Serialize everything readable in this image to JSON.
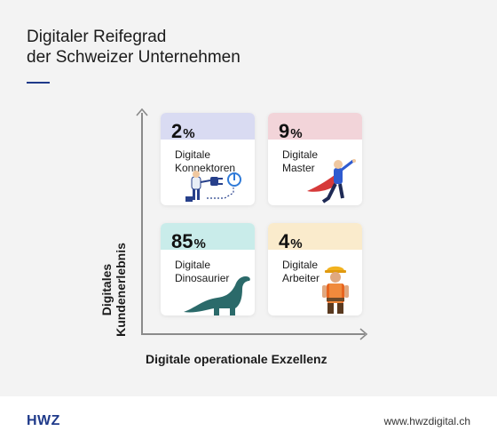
{
  "header": {
    "title_line1": "Digitaler Reifegrad",
    "title_line2": "der Schweizer Unternehmen"
  },
  "chart_data": {
    "type": "table",
    "xlabel": "Digitale operationale Exzellenz",
    "ylabel_line1": "Digitales",
    "ylabel_line2": "Kundenerlebnis",
    "percent_sign": "%",
    "quadrants": [
      {
        "position": "top-left",
        "value": 2,
        "label_line1": "Digitale",
        "label_line2": "Konnektoren",
        "color": "#d9dbf2",
        "icon": "plug-icon"
      },
      {
        "position": "top-right",
        "value": 9,
        "label_line1": "Digitale",
        "label_line2": "Master",
        "color": "#f2d4d9",
        "icon": "superhero-icon"
      },
      {
        "position": "bottom-left",
        "value": 85,
        "label_line1": "Digitale",
        "label_line2": "Dinosaurier",
        "color": "#c9ecea",
        "icon": "dinosaur-icon"
      },
      {
        "position": "bottom-right",
        "value": 4,
        "label_line1": "Digitale",
        "label_line2": "Arbeiter",
        "color": "#faebcc",
        "icon": "worker-icon"
      }
    ]
  },
  "footer": {
    "brand": "HWZ",
    "url": "www.hwzdigital.ch"
  }
}
